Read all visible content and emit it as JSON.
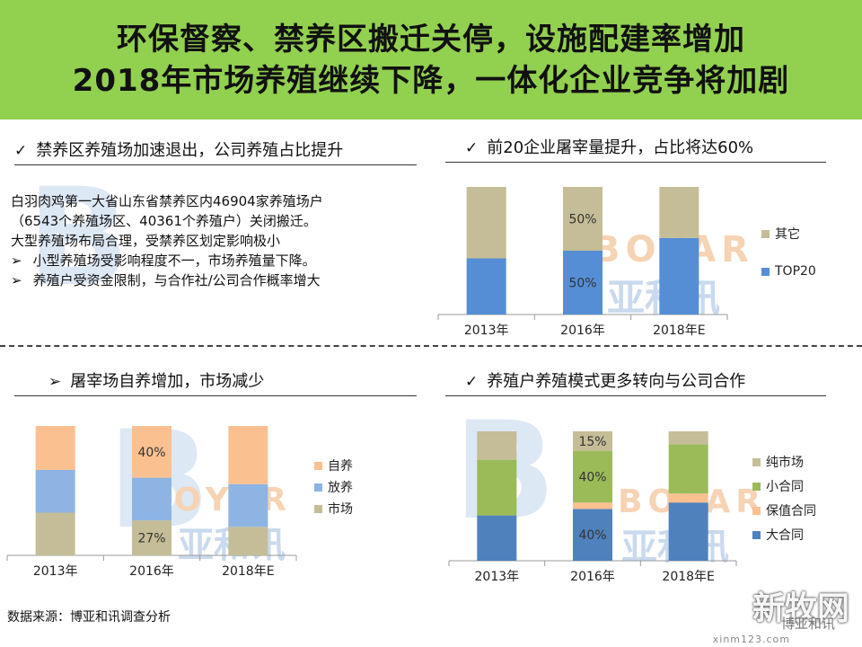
{
  "title": {
    "line1": "环保督察、禁养区搬迁关停，设施配建率增加",
    "line2": "2018年市场养殖继续下降，一体化企业竞争将加剧"
  },
  "section1": {
    "check": "✓",
    "heading": "禁养区养殖场加速退出，公司养殖占比提升",
    "lines": [
      "白羽肉鸡第一大省山东省禁养区内46904家养殖场户",
      "（6543个养殖场区、40361个养殖户）关闭搬迁。",
      "大型养殖场布局合理，受禁养区划定影响极小"
    ],
    "bullets": [
      "小型养殖场受影响程度不一，市场养殖量下降。",
      "养殖户受资金限制，与合作社/公司合作概率增大"
    ],
    "bullet_mark": "➢"
  },
  "section2": {
    "check": "✓",
    "heading": "前20企业屠宰量提升，占比将达60%"
  },
  "section3": {
    "check": "➢",
    "heading": "屠宰场自养增加，市场减少"
  },
  "section4": {
    "check": "✓",
    "heading": "养殖户养殖模式更多转向与公司合作"
  },
  "source": "数据来源：博亚和讯调查分析",
  "watermarks": {
    "logo_letters": "BOYAR",
    "logo_cn": "亚和讯",
    "site_logo": "新牧网",
    "site_sub": "博亚和讯",
    "site_url": "xinm123.com"
  },
  "colors": {
    "title_bg": "#92d050",
    "tan": "#c4bd97",
    "blue": "#558ed5",
    "peach": "#fac090",
    "lightblue": "#8db4e2",
    "olive": "#c4bd97",
    "green": "#9bbb59",
    "darkblue": "#4f81bd"
  },
  "chart_data": [
    {
      "id": "top20",
      "type": "bar",
      "stacked": true,
      "categories": [
        "2013年",
        "2016年",
        "2018年E"
      ],
      "series": [
        {
          "name": "TOP20",
          "color": "#558ed5",
          "values": [
            44,
            50,
            60
          ]
        },
        {
          "name": "其它",
          "color": "#c4bd97",
          "values": [
            56,
            50,
            40
          ]
        }
      ],
      "data_labels": [
        {
          "category": "2016年",
          "series": "其它",
          "text": "50%"
        },
        {
          "category": "2016年",
          "series": "TOP20",
          "text": "50%"
        }
      ],
      "legend": [
        "其它",
        "TOP20"
      ],
      "ylim": [
        0,
        100
      ]
    },
    {
      "id": "slaughter",
      "type": "bar",
      "stacked": true,
      "categories": [
        "2013年",
        "2016年",
        "2018年E"
      ],
      "series": [
        {
          "name": "市场",
          "color": "#c4bd97",
          "values": [
            33,
            27,
            22
          ]
        },
        {
          "name": "放养",
          "color": "#8db4e2",
          "values": [
            33,
            33,
            33
          ]
        },
        {
          "name": "自养",
          "color": "#fac090",
          "values": [
            34,
            40,
            45
          ]
        }
      ],
      "data_labels": [
        {
          "category": "2016年",
          "series": "自养",
          "text": "40%"
        },
        {
          "category": "2016年",
          "series": "市场",
          "text": "27%"
        }
      ],
      "legend": [
        "自养",
        "放养",
        "市场"
      ],
      "ylim": [
        0,
        100
      ]
    },
    {
      "id": "farming_mode",
      "type": "bar",
      "stacked": true,
      "categories": [
        "2013年",
        "2016年",
        "2018年E"
      ],
      "series": [
        {
          "name": "大合同",
          "color": "#4f81bd",
          "values": [
            35,
            40,
            45
          ]
        },
        {
          "name": "保值合同",
          "color": "#fac090",
          "values": [
            0,
            5,
            7
          ]
        },
        {
          "name": "小合同",
          "color": "#9bbb59",
          "values": [
            43,
            40,
            38
          ]
        },
        {
          "name": "纯市场",
          "color": "#c4bd97",
          "values": [
            22,
            15,
            10
          ]
        }
      ],
      "data_labels": [
        {
          "category": "2016年",
          "series": "纯市场",
          "text": "15%"
        },
        {
          "category": "2016年",
          "series": "小合同",
          "text": "40%"
        },
        {
          "category": "2016年",
          "series": "大合同",
          "text": "40%"
        }
      ],
      "legend": [
        "纯市场",
        "小合同",
        "保值合同",
        "大合同"
      ],
      "ylim": [
        0,
        100
      ]
    }
  ]
}
